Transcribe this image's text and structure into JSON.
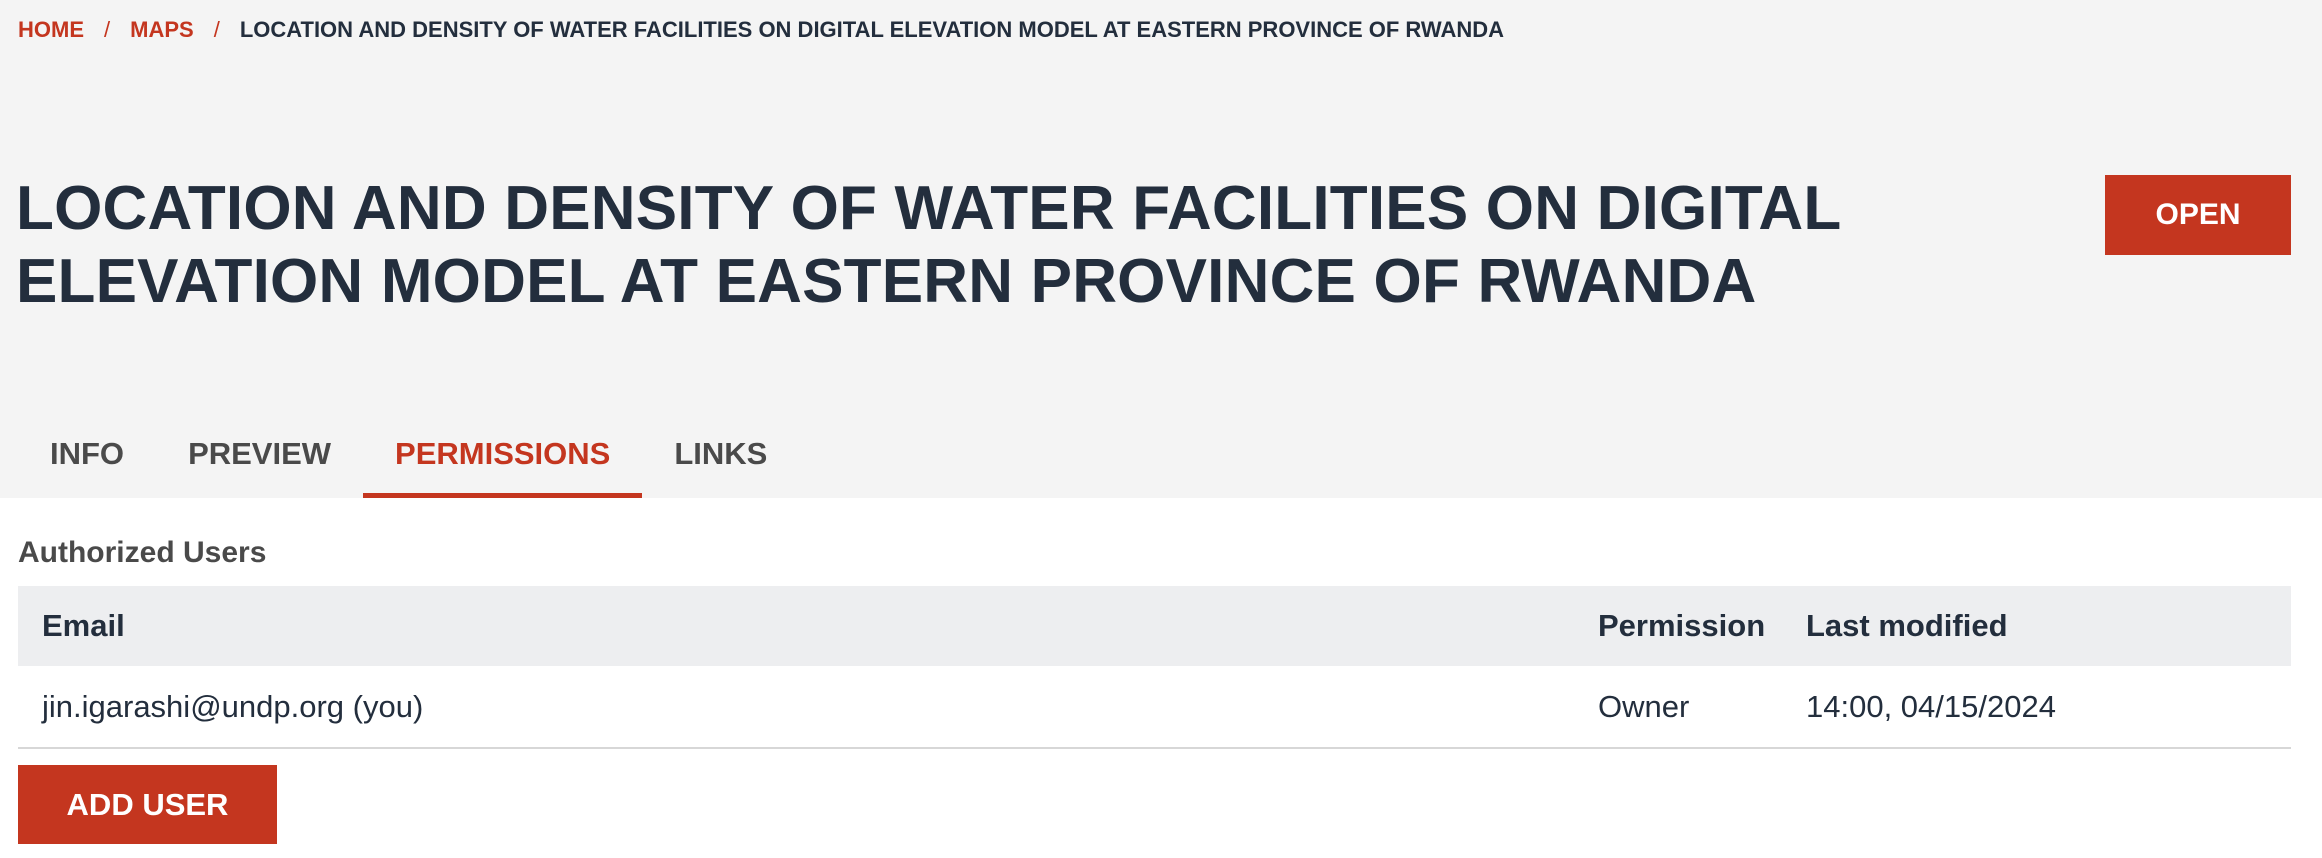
{
  "breadcrumb": {
    "home": "HOME",
    "maps": "MAPS",
    "separator": "/",
    "current": "LOCATION AND DENSITY OF WATER FACILITIES ON DIGITAL ELEVATION MODEL AT EASTERN PROVINCE OF RWANDA"
  },
  "page": {
    "title": "LOCATION AND DENSITY OF WATER FACILITIES ON DIGITAL ELEVATION MODEL AT EASTERN PROVINCE OF RWANDA",
    "open_label": "OPEN"
  },
  "tabs": [
    {
      "label": "INFO",
      "active": false
    },
    {
      "label": "PREVIEW",
      "active": false
    },
    {
      "label": "PERMISSIONS",
      "active": true
    },
    {
      "label": "LINKS",
      "active": false
    }
  ],
  "permissions": {
    "section_label": "Authorized Users",
    "columns": {
      "email": "Email",
      "permission": "Permission",
      "last_modified": "Last modified"
    },
    "rows": [
      {
        "email": "jin.igarashi@undp.org (you)",
        "permission": "Owner",
        "last_modified": "14:00, 04/15/2024"
      }
    ],
    "add_user_label": "ADD USER"
  },
  "colors": {
    "accent": "#c4361f",
    "text": "#232e3d",
    "header_bg": "#f4f4f4",
    "table_header_bg": "#edeef0"
  }
}
